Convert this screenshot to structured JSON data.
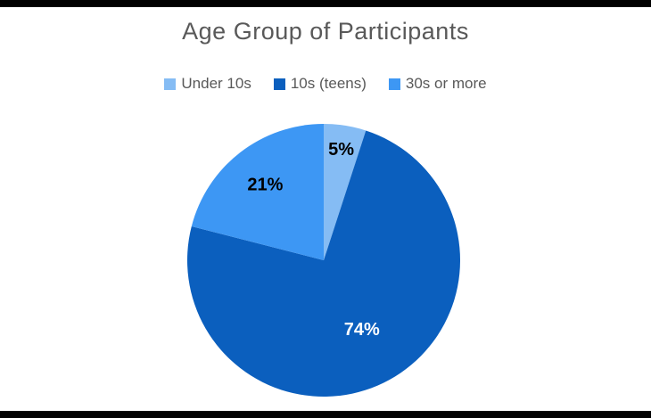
{
  "chart_data": {
    "type": "pie",
    "title": "Age Group of Participants",
    "unit": "%",
    "legend_position": "top",
    "start_angle_deg": 0,
    "direction": "clockwise",
    "slices": [
      {
        "label": "Under 10s",
        "value": 5,
        "display": "5%",
        "color": "#85BCF4",
        "label_color": "#000000",
        "label_radius": 0.82
      },
      {
        "label": "10s (teens)",
        "value": 74,
        "display": "74%",
        "color": "#0B5FBE",
        "label_color": "#FFFFFF",
        "label_radius": 0.58
      },
      {
        "label": "30s or more",
        "value": 21,
        "display": "21%",
        "color": "#3D97F4",
        "label_color": "#000000",
        "label_radius": 0.7
      }
    ]
  },
  "colors": {
    "background": "#FFFFFF",
    "title_text": "#595959",
    "legend_text": "#595959",
    "edge_bars": "#000000"
  }
}
